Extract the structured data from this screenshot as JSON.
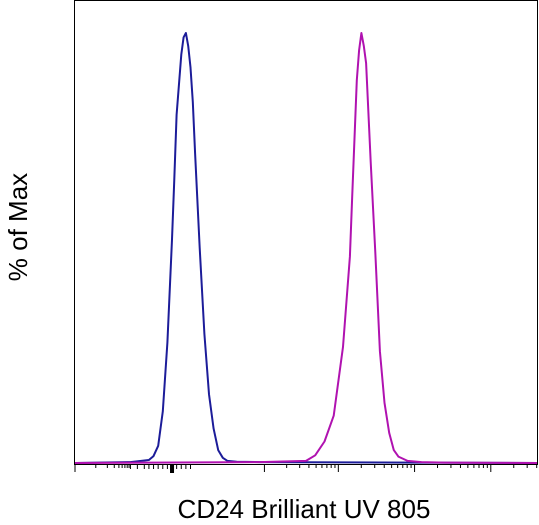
{
  "chart_data": {
    "type": "line",
    "title": "",
    "xlabel": "CD24 Brilliant UV 805",
    "ylabel": "% of Max",
    "xscale": "log",
    "xlim": [
      0,
      1
    ],
    "ylim": [
      0,
      100
    ],
    "grid": false,
    "legend": "none",
    "series": [
      {
        "color": "#1c1c99",
        "x": [
          0.0,
          0.12,
          0.16,
          0.17,
          0.18,
          0.19,
          0.2,
          0.21,
          0.215,
          0.22,
          0.23,
          0.235,
          0.24,
          0.245,
          0.25,
          0.255,
          0.26,
          0.27,
          0.28,
          0.29,
          0.3,
          0.31,
          0.32,
          0.33,
          0.35,
          0.4,
          1.0
        ],
        "y": [
          0.0,
          0.2,
          0.7,
          1.6,
          4.0,
          12.0,
          28.0,
          52.0,
          66.0,
          81.0,
          95.0,
          99.0,
          100.0,
          97.0,
          92.0,
          84.0,
          72.0,
          50.0,
          30.0,
          16.0,
          8.0,
          3.0,
          1.2,
          0.5,
          0.3,
          0.2,
          0.0
        ]
      },
      {
        "color": "#b012b0",
        "x": [
          0.0,
          0.4,
          0.5,
          0.52,
          0.54,
          0.56,
          0.58,
          0.595,
          0.6,
          0.61,
          0.615,
          0.62,
          0.625,
          0.63,
          0.64,
          0.65,
          0.66,
          0.67,
          0.68,
          0.69,
          0.7,
          0.72,
          0.75,
          0.8,
          1.0
        ],
        "y": [
          0.0,
          0.2,
          0.5,
          1.8,
          5.0,
          11.0,
          27.0,
          48.0,
          62.0,
          89.0,
          96.0,
          100.0,
          97.0,
          93.0,
          70.0,
          49.0,
          26.0,
          14.0,
          7.0,
          3.0,
          1.5,
          0.5,
          0.2,
          0.1,
          0.0
        ]
      }
    ]
  }
}
